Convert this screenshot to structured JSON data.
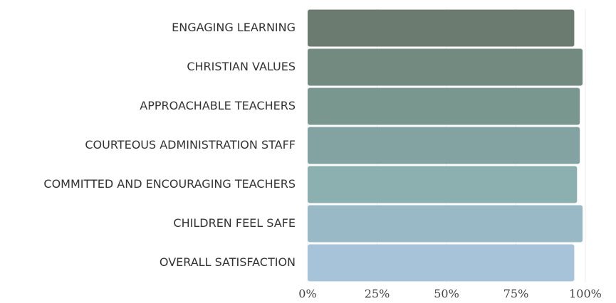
{
  "chart_data": {
    "type": "bar",
    "orientation": "horizontal",
    "categories": [
      "ENGAGING LEARNING",
      "CHRISTIAN VALUES",
      "APPROACHABLE TEACHERS",
      "COURTEOUS ADMINISTRATION STAFF",
      "COMMITTED AND ENCOURAGING TEACHERS",
      "CHILDREN FEEL SAFE",
      "OVERALL SATISFACTION"
    ],
    "values": [
      96,
      99,
      98,
      98,
      97,
      99,
      96
    ],
    "colors": [
      "#6c7b6f",
      "#728a80",
      "#79968f",
      "#82a3a1",
      "#8cafb0",
      "#9ab9c6",
      "#a7c3da"
    ],
    "xlim": [
      0,
      100
    ],
    "xticks": [
      {
        "value": 0,
        "label": "0%"
      },
      {
        "value": 25,
        "label": "25%"
      },
      {
        "value": 50,
        "label": "50%"
      },
      {
        "value": 75,
        "label": "75%"
      },
      {
        "value": 100,
        "label": "100%"
      }
    ],
    "grid": true
  }
}
